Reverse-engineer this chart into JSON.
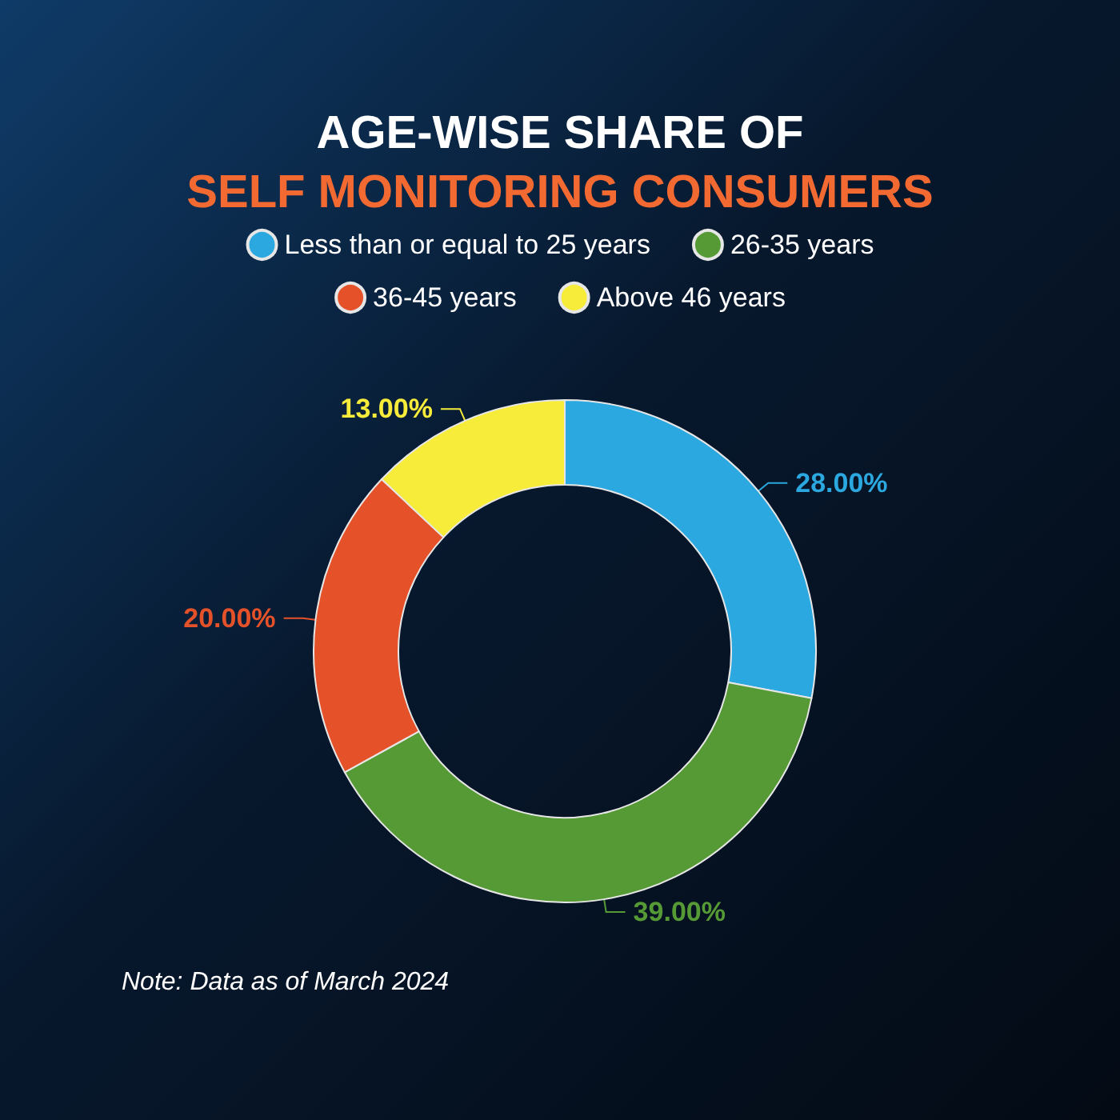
{
  "chart_data": {
    "type": "donut",
    "title": "AGE-WISE SHARE OF",
    "subtitle": "SELF MONITORING CONSUMERS",
    "categories": [
      "Less than or equal to 25 years",
      "26-35 years",
      "36-45 years",
      "Above 46 years"
    ],
    "values": [
      28,
      39,
      20,
      13
    ],
    "value_labels": [
      "28.00%",
      "39.00%",
      "20.00%",
      "13.00%"
    ],
    "colors": [
      "#2ba8e0",
      "#559a35",
      "#e5522a",
      "#f7ec3a"
    ],
    "legend": "top",
    "annotations": [
      "Note: Data as of March 2024"
    ]
  }
}
